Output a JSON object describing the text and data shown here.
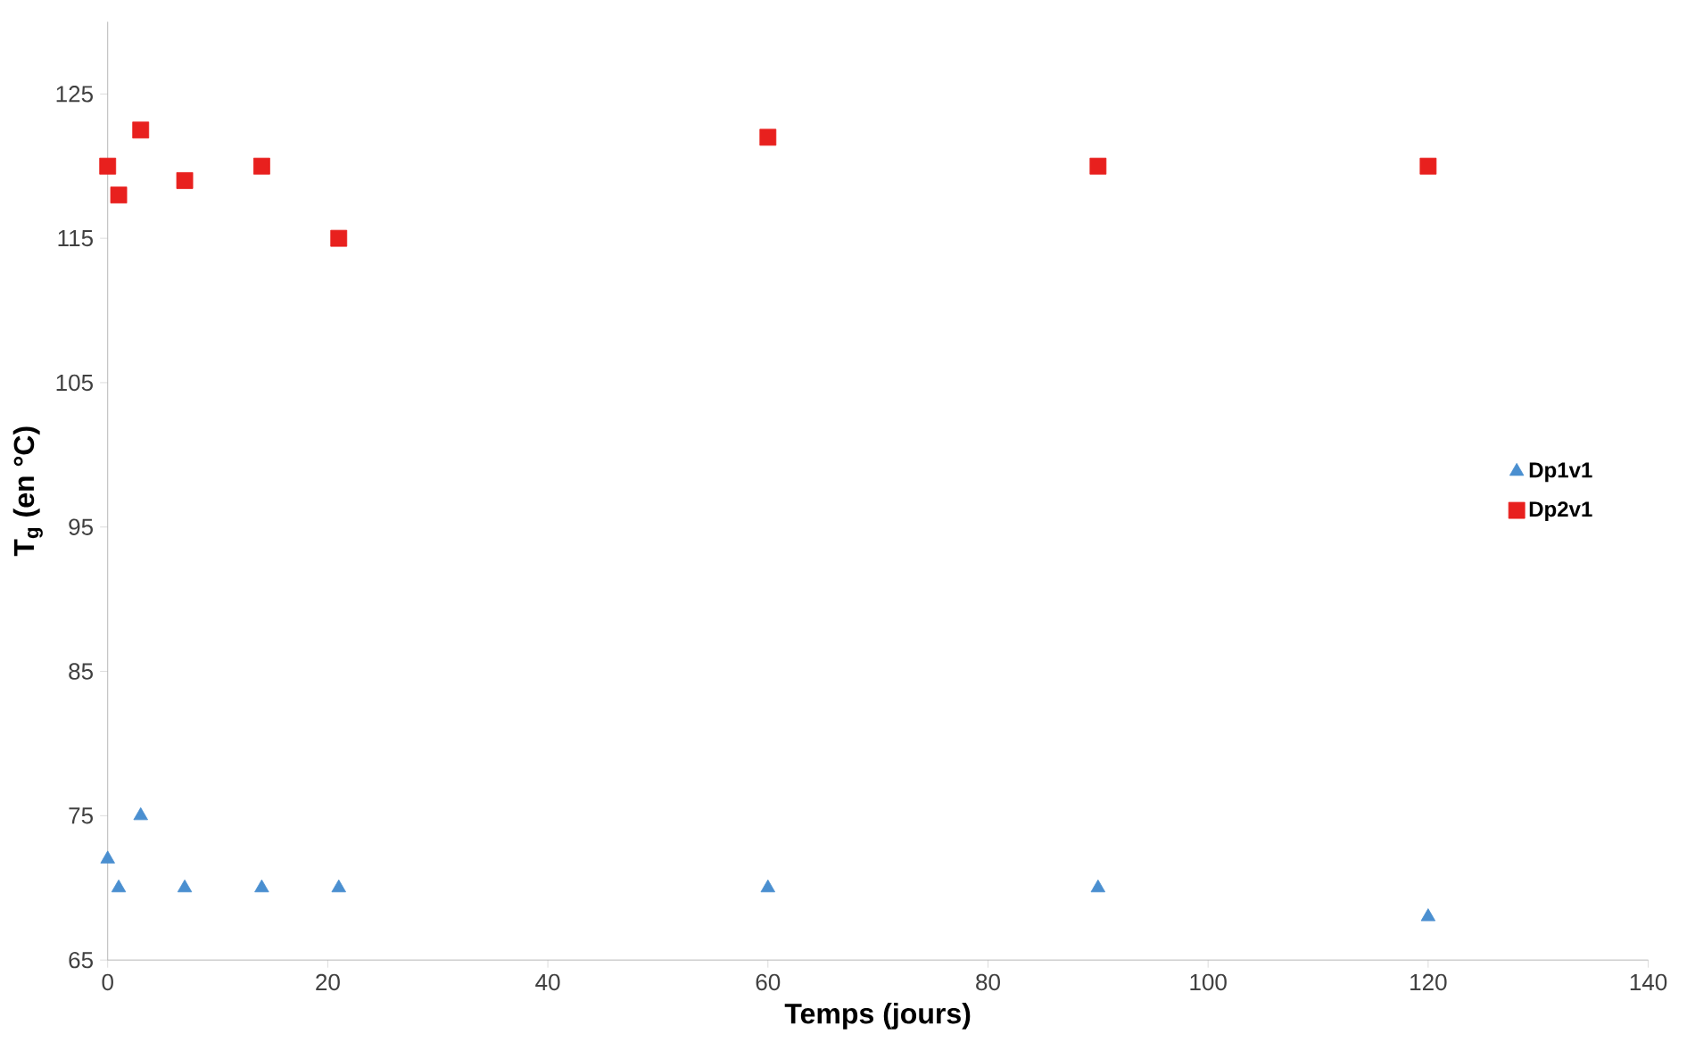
{
  "chart_data": {
    "type": "scatter",
    "xlabel": "Temps (jours)",
    "ylabel": "T$_{g}$ (en °C)",
    "xlim": [
      0,
      140
    ],
    "xticks": [
      0,
      20,
      40,
      60,
      80,
      100,
      120,
      140
    ],
    "ylim": [
      65,
      130
    ],
    "yticks": [
      65,
      75,
      85,
      95,
      105,
      115,
      125
    ],
    "grid": false,
    "legend": "right",
    "series": [
      {
        "name": "Dp1v1",
        "color": "#4a8fd0",
        "marker": "triangle",
        "x": [
          0,
          1,
          3,
          7,
          14,
          21,
          60,
          90,
          120
        ],
        "values": [
          72,
          70,
          75,
          70,
          70,
          70,
          70,
          70,
          68
        ]
      },
      {
        "name": "Dp2v1",
        "color": "#e8201e",
        "marker": "square",
        "x": [
          0,
          1,
          3,
          7,
          14,
          21,
          60,
          90,
          120
        ],
        "values": [
          120,
          118,
          122.5,
          119,
          120,
          115,
          122,
          120,
          120
        ]
      }
    ]
  }
}
